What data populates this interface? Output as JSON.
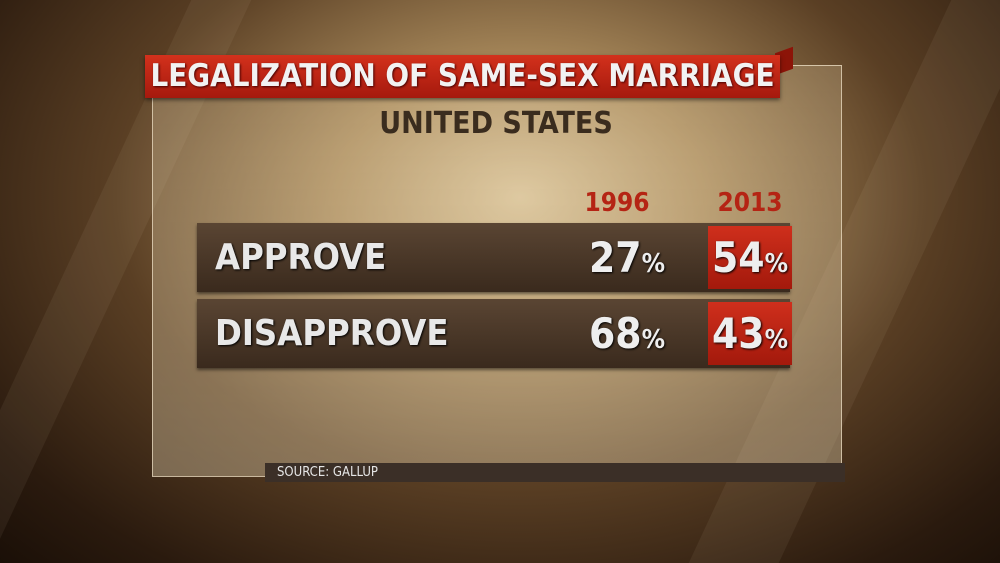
{
  "chart_data": {
    "type": "table",
    "title": "LEGALIZATION OF SAME-SEX MARRIAGE",
    "subtitle": "UNITED STATES",
    "columns": [
      "1996",
      "2013"
    ],
    "rows": [
      {
        "label": "APPROVE",
        "values": [
          "27",
          "54"
        ]
      },
      {
        "label": "DISAPPROVE",
        "values": [
          "68",
          "43"
        ]
      }
    ],
    "unit": "%",
    "source": "SOURCE: GALLUP",
    "colors": {
      "accent": "#c02616",
      "row": "#4a3828"
    }
  }
}
